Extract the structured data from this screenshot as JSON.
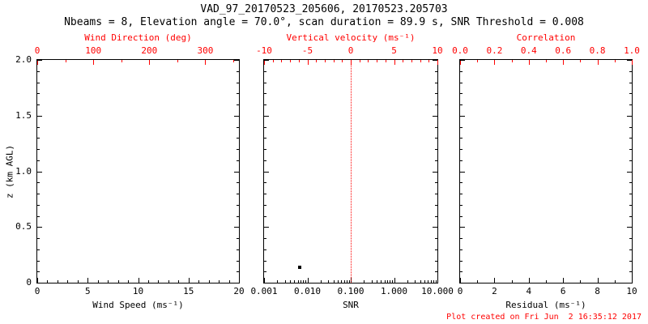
{
  "header": {
    "title": "VAD_97_20170523_205606, 20170523.205703",
    "subtitle": "Nbeams = 8, Elevation angle = 70.0°, scan duration = 89.9 s, SNR Threshold = 0.008"
  },
  "footer": {
    "created": "Plot created on Fri Jun  2 16:35:12 2017"
  },
  "colors": {
    "foreground": "#000000",
    "accent_red": "#ff0000",
    "background": "#ffffff"
  },
  "chart_data": {
    "type": "scatter",
    "layout": "three-panel vertical profile with shared z (km AGL) axis, top axes in red",
    "z_axis": {
      "label": "z (km AGL)",
      "range": [
        0,
        2.0
      ],
      "minor_divs": 5,
      "ticks": [
        {
          "label": "0",
          "pos": 0
        },
        {
          "label": "0.5",
          "pos": 0.25
        },
        {
          "label": "1.0",
          "pos": 0.5
        },
        {
          "label": "1.5",
          "pos": 0.75
        },
        {
          "label": "2.0",
          "pos": 1
        }
      ]
    },
    "panels": [
      {
        "name": "wind",
        "x_top": {
          "label": "Wind Direction (deg)",
          "color": "#ff0000",
          "range": [
            0,
            360
          ],
          "minor_divs": 2,
          "ticks": [
            {
              "label": "0",
              "pos": 0
            },
            {
              "label": "100",
              "pos": 0.2778
            },
            {
              "label": "200",
              "pos": 0.5556
            },
            {
              "label": "300",
              "pos": 0.8333
            }
          ]
        },
        "x_bottom": {
          "label": "Wind Speed (ms⁻¹)",
          "range": [
            0,
            20
          ],
          "minor_divs": 5,
          "ticks": [
            {
              "label": "0",
              "pos": 0
            },
            {
              "label": "5",
              "pos": 0.25
            },
            {
              "label": "10",
              "pos": 0.5
            },
            {
              "label": "15",
              "pos": 0.75
            },
            {
              "label": "20",
              "pos": 1
            }
          ]
        },
        "points": []
      },
      {
        "name": "snr",
        "x_top": {
          "label": "Vertical velocity (ms⁻¹)",
          "color": "#ff0000",
          "range": [
            -10,
            10
          ],
          "minor_divs": 5,
          "ticks": [
            {
              "label": "-10",
              "pos": 0
            },
            {
              "label": "-5",
              "pos": 0.25
            },
            {
              "label": "0",
              "pos": 0.5
            },
            {
              "label": "5",
              "pos": 0.75
            },
            {
              "label": "10",
              "pos": 1
            }
          ]
        },
        "x_bottom": {
          "label": "SNR",
          "scale": "log",
          "range": [
            0.001,
            10
          ],
          "log_minor": true,
          "ticks": [
            {
              "label": "0.001",
              "pos": 0
            },
            {
              "label": "0.010",
              "pos": 0.25
            },
            {
              "label": "0.100",
              "pos": 0.5
            },
            {
              "label": "1.000",
              "pos": 0.75
            },
            {
              "label": "10.000",
              "pos": 1
            }
          ]
        },
        "reference_line": {
          "value": 0.1,
          "pos": 0.5,
          "color": "#ff0000",
          "style": "dotted"
        },
        "points": [
          {
            "snr": 0.0065,
            "z": 0.14,
            "pos_x": 0.205,
            "pos_y": 0.07
          }
        ]
      },
      {
        "name": "residual",
        "x_top": {
          "label": "Correlation",
          "color": "#ff0000",
          "range": [
            0,
            1
          ],
          "minor_divs": 2,
          "ticks": [
            {
              "label": "0.0",
              "pos": 0
            },
            {
              "label": "0.2",
              "pos": 0.2
            },
            {
              "label": "0.4",
              "pos": 0.4
            },
            {
              "label": "0.6",
              "pos": 0.6
            },
            {
              "label": "0.8",
              "pos": 0.8
            },
            {
              "label": "1.0",
              "pos": 1
            }
          ]
        },
        "x_bottom": {
          "label": "Residual (ms⁻¹)",
          "range": [
            0,
            10
          ],
          "minor_divs": 2,
          "ticks": [
            {
              "label": "0",
              "pos": 0
            },
            {
              "label": "2",
              "pos": 0.2
            },
            {
              "label": "4",
              "pos": 0.4
            },
            {
              "label": "6",
              "pos": 0.6
            },
            {
              "label": "8",
              "pos": 0.8
            },
            {
              "label": "10",
              "pos": 1
            }
          ]
        },
        "points": []
      }
    ]
  }
}
